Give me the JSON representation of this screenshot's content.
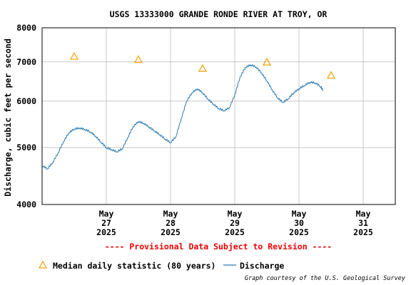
{
  "chart_data": {
    "type": "line",
    "title": "USGS 13333000 GRANDE RONDE RIVER AT TROY, OR",
    "ylabel": "Discharge, cubic feet per second",
    "xlabel": "",
    "yscale": "log",
    "ylim": [
      4000,
      8000
    ],
    "y_ticks": [
      4000,
      5000,
      6000,
      7000,
      8000
    ],
    "xlim": [
      "2025-05-26",
      "2025-05-31 12:00"
    ],
    "grid": true,
    "x_ticks": [
      {
        "x": "2025-05-27",
        "lines": [
          "May",
          "27",
          "2025"
        ]
      },
      {
        "x": "2025-05-28",
        "lines": [
          "May",
          "28",
          "2025"
        ]
      },
      {
        "x": "2025-05-29",
        "lines": [
          "May",
          "29",
          "2025"
        ]
      },
      {
        "x": "2025-05-30",
        "lines": [
          "May",
          "30",
          "2025"
        ]
      },
      {
        "x": "2025-05-31",
        "lines": [
          "May",
          "31",
          "2025"
        ]
      }
    ],
    "series": [
      {
        "name": "Discharge",
        "color": "#2a7ab0",
        "kind": "line",
        "points": [
          [
            "2025-05-26 00:00",
            4660
          ],
          [
            "2025-05-26 02:00",
            4600
          ],
          [
            "2025-05-26 04:00",
            4720
          ],
          [
            "2025-05-26 06:00",
            4900
          ],
          [
            "2025-05-26 08:00",
            5120
          ],
          [
            "2025-05-26 10:00",
            5300
          ],
          [
            "2025-05-26 12:00",
            5380
          ],
          [
            "2025-05-26 14:00",
            5400
          ],
          [
            "2025-05-26 16:00",
            5370
          ],
          [
            "2025-05-26 18:00",
            5320
          ],
          [
            "2025-05-26 20:00",
            5230
          ],
          [
            "2025-05-26 22:00",
            5110
          ],
          [
            "2025-05-27 00:00",
            5000
          ],
          [
            "2025-05-27 02:00",
            4960
          ],
          [
            "2025-05-27 04:00",
            4920
          ],
          [
            "2025-05-27 06:00",
            4980
          ],
          [
            "2025-05-27 08:00",
            5200
          ],
          [
            "2025-05-27 10:00",
            5430
          ],
          [
            "2025-05-27 12:00",
            5540
          ],
          [
            "2025-05-27 14:00",
            5500
          ],
          [
            "2025-05-27 16:00",
            5420
          ],
          [
            "2025-05-27 18:00",
            5340
          ],
          [
            "2025-05-27 20:00",
            5260
          ],
          [
            "2025-05-27 22:00",
            5170
          ],
          [
            "2025-05-28 00:00",
            5100
          ],
          [
            "2025-05-28 02:00",
            5220
          ],
          [
            "2025-05-28 04:00",
            5600
          ],
          [
            "2025-05-28 06:00",
            6000
          ],
          [
            "2025-05-28 08:00",
            6200
          ],
          [
            "2025-05-28 10:00",
            6300
          ],
          [
            "2025-05-28 12:00",
            6200
          ],
          [
            "2025-05-28 14:00",
            6050
          ],
          [
            "2025-05-28 16:00",
            5930
          ],
          [
            "2025-05-28 18:00",
            5830
          ],
          [
            "2025-05-28 20:00",
            5780
          ],
          [
            "2025-05-28 22:00",
            5850
          ],
          [
            "2025-05-29 00:00",
            6150
          ],
          [
            "2025-05-29 02:00",
            6600
          ],
          [
            "2025-05-29 04:00",
            6850
          ],
          [
            "2025-05-29 06:00",
            6920
          ],
          [
            "2025-05-29 08:00",
            6860
          ],
          [
            "2025-05-29 10:00",
            6700
          ],
          [
            "2025-05-29 12:00",
            6500
          ],
          [
            "2025-05-29 14:00",
            6270
          ],
          [
            "2025-05-29 16:00",
            6080
          ],
          [
            "2025-05-29 18:00",
            5970
          ],
          [
            "2025-05-29 20:00",
            6060
          ],
          [
            "2025-05-29 22:00",
            6200
          ],
          [
            "2025-05-30 00:00",
            6300
          ],
          [
            "2025-05-30 02:00",
            6380
          ],
          [
            "2025-05-30 04:00",
            6460
          ],
          [
            "2025-05-30 06:00",
            6450
          ],
          [
            "2025-05-30 08:00",
            6360
          ],
          [
            "2025-05-30 09:00",
            6260
          ]
        ]
      },
      {
        "name": "Median daily statistic (80 years)",
        "color": "#f2a000",
        "kind": "markers",
        "points": [
          [
            "2025-05-26 12:00",
            7150
          ],
          [
            "2025-05-27 12:00",
            7060
          ],
          [
            "2025-05-28 12:00",
            6820
          ],
          [
            "2025-05-29 12:00",
            6990
          ],
          [
            "2025-05-30 12:00",
            6640
          ]
        ]
      }
    ],
    "provisional_note": "---- Provisional Data Subject to Revision ----",
    "legend_position": "bottom-left",
    "credit": "Graph courtesy of the U.S. Geological Survey"
  }
}
